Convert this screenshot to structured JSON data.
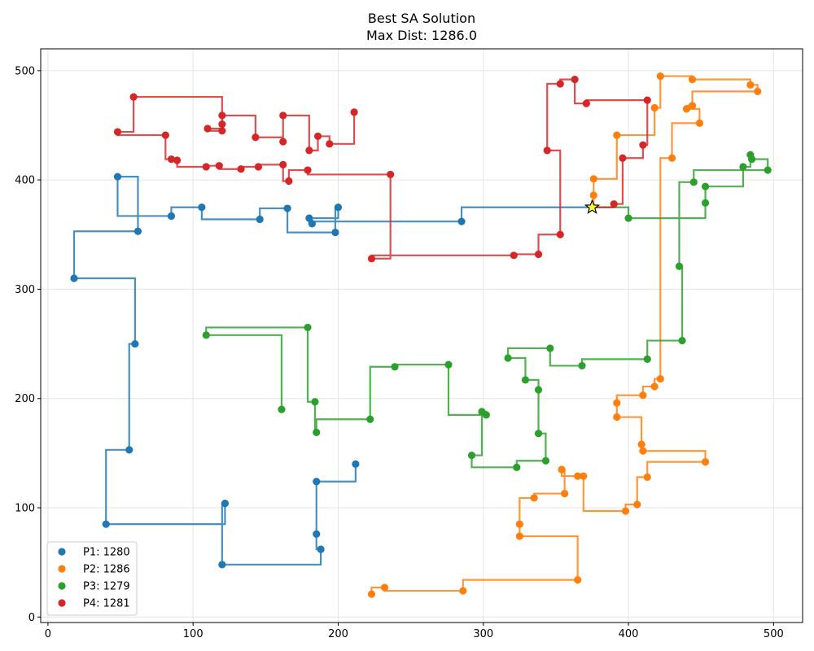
{
  "chart_data": {
    "type": "line",
    "title": "Best SA Solution",
    "subtitle": "Max Dist: 1286.0",
    "xlabel": "",
    "ylabel": "",
    "xlim": [
      -5,
      520
    ],
    "ylim": [
      -5,
      520
    ],
    "xticks": [
      0,
      100,
      200,
      300,
      400,
      500
    ],
    "yticks": [
      0,
      100,
      200,
      300,
      400,
      500
    ],
    "grid": true,
    "legend_position": "bottom-left",
    "path_style": "manhattan",
    "depot": [
      375,
      375
    ],
    "series": [
      {
        "name": "P1: 1280",
        "color": "#1f77b4",
        "points": [
          [
            375,
            375
          ],
          [
            285,
            362
          ],
          [
            182,
            360
          ],
          [
            180,
            365
          ],
          [
            200,
            375
          ],
          [
            198,
            352
          ],
          [
            165,
            374
          ],
          [
            146,
            364
          ],
          [
            106,
            375
          ],
          [
            85,
            367
          ],
          [
            48,
            403
          ],
          [
            62,
            353
          ],
          [
            18,
            310
          ],
          [
            60,
            250
          ],
          [
            56,
            153
          ],
          [
            40,
            85
          ],
          [
            122,
            104
          ],
          [
            120,
            48
          ],
          [
            188,
            62
          ],
          [
            185,
            76
          ],
          [
            185,
            124
          ],
          [
            212,
            140
          ]
        ]
      },
      {
        "name": "P2: 1286",
        "color": "#ff7f0e",
        "points": [
          [
            375,
            375
          ],
          [
            376,
            386
          ],
          [
            376,
            401
          ],
          [
            392,
            441
          ],
          [
            418,
            466
          ],
          [
            422,
            495
          ],
          [
            444,
            492
          ],
          [
            484,
            487
          ],
          [
            489,
            481
          ],
          [
            444,
            468
          ],
          [
            440,
            465
          ],
          [
            449,
            452
          ],
          [
            430,
            420
          ],
          [
            422,
            218
          ],
          [
            418,
            211
          ],
          [
            410,
            203
          ],
          [
            392,
            196
          ],
          [
            392,
            183
          ],
          [
            409,
            158
          ],
          [
            410,
            152
          ],
          [
            453,
            142
          ],
          [
            413,
            128
          ],
          [
            406,
            103
          ],
          [
            398,
            97
          ],
          [
            369,
            129
          ],
          [
            365,
            129
          ],
          [
            354,
            135
          ],
          [
            356,
            113
          ],
          [
            335,
            109
          ],
          [
            325,
            85
          ],
          [
            325,
            74
          ],
          [
            365,
            34
          ],
          [
            286,
            24
          ],
          [
            232,
            27
          ],
          [
            223,
            21
          ]
        ]
      },
      {
        "name": "P3: 1279",
        "color": "#2ca02c",
        "points": [
          [
            375,
            375
          ],
          [
            400,
            365
          ],
          [
            453,
            379
          ],
          [
            453,
            394
          ],
          [
            479,
            412
          ],
          [
            484,
            423
          ],
          [
            485,
            419
          ],
          [
            496,
            409
          ],
          [
            445,
            398
          ],
          [
            435,
            321
          ],
          [
            437,
            253
          ],
          [
            413,
            236
          ],
          [
            368,
            230
          ],
          [
            346,
            246
          ],
          [
            317,
            237
          ],
          [
            329,
            217
          ],
          [
            338,
            208
          ],
          [
            338,
            168
          ],
          [
            343,
            143
          ],
          [
            323,
            137
          ],
          [
            292,
            148
          ],
          [
            299,
            188
          ],
          [
            302,
            185
          ],
          [
            276,
            231
          ],
          [
            239,
            229
          ],
          [
            222,
            181
          ],
          [
            185,
            169
          ],
          [
            184,
            197
          ],
          [
            179,
            265
          ],
          [
            109,
            258
          ],
          [
            161,
            190
          ]
        ]
      },
      {
        "name": "P4: 1281",
        "color": "#d62728",
        "points": [
          [
            375,
            375
          ],
          [
            390,
            378
          ],
          [
            396,
            420
          ],
          [
            410,
            432
          ],
          [
            413,
            473
          ],
          [
            371,
            470
          ],
          [
            363,
            492
          ],
          [
            353,
            488
          ],
          [
            344,
            427
          ],
          [
            353,
            350
          ],
          [
            338,
            332
          ],
          [
            321,
            331
          ],
          [
            223,
            328
          ],
          [
            236,
            405
          ],
          [
            179,
            409
          ],
          [
            166,
            399
          ],
          [
            162,
            414
          ],
          [
            145,
            412
          ],
          [
            133,
            410
          ],
          [
            118,
            413
          ],
          [
            109,
            412
          ],
          [
            89,
            418
          ],
          [
            85,
            419
          ],
          [
            81,
            441
          ],
          [
            48,
            444
          ],
          [
            59,
            476
          ],
          [
            120,
            445
          ],
          [
            110,
            447
          ],
          [
            120,
            451
          ],
          [
            120,
            459
          ],
          [
            143,
            439
          ],
          [
            162,
            435
          ],
          [
            162,
            459
          ],
          [
            180,
            427
          ],
          [
            186,
            440
          ],
          [
            194,
            433
          ],
          [
            211,
            462
          ]
        ]
      }
    ]
  }
}
